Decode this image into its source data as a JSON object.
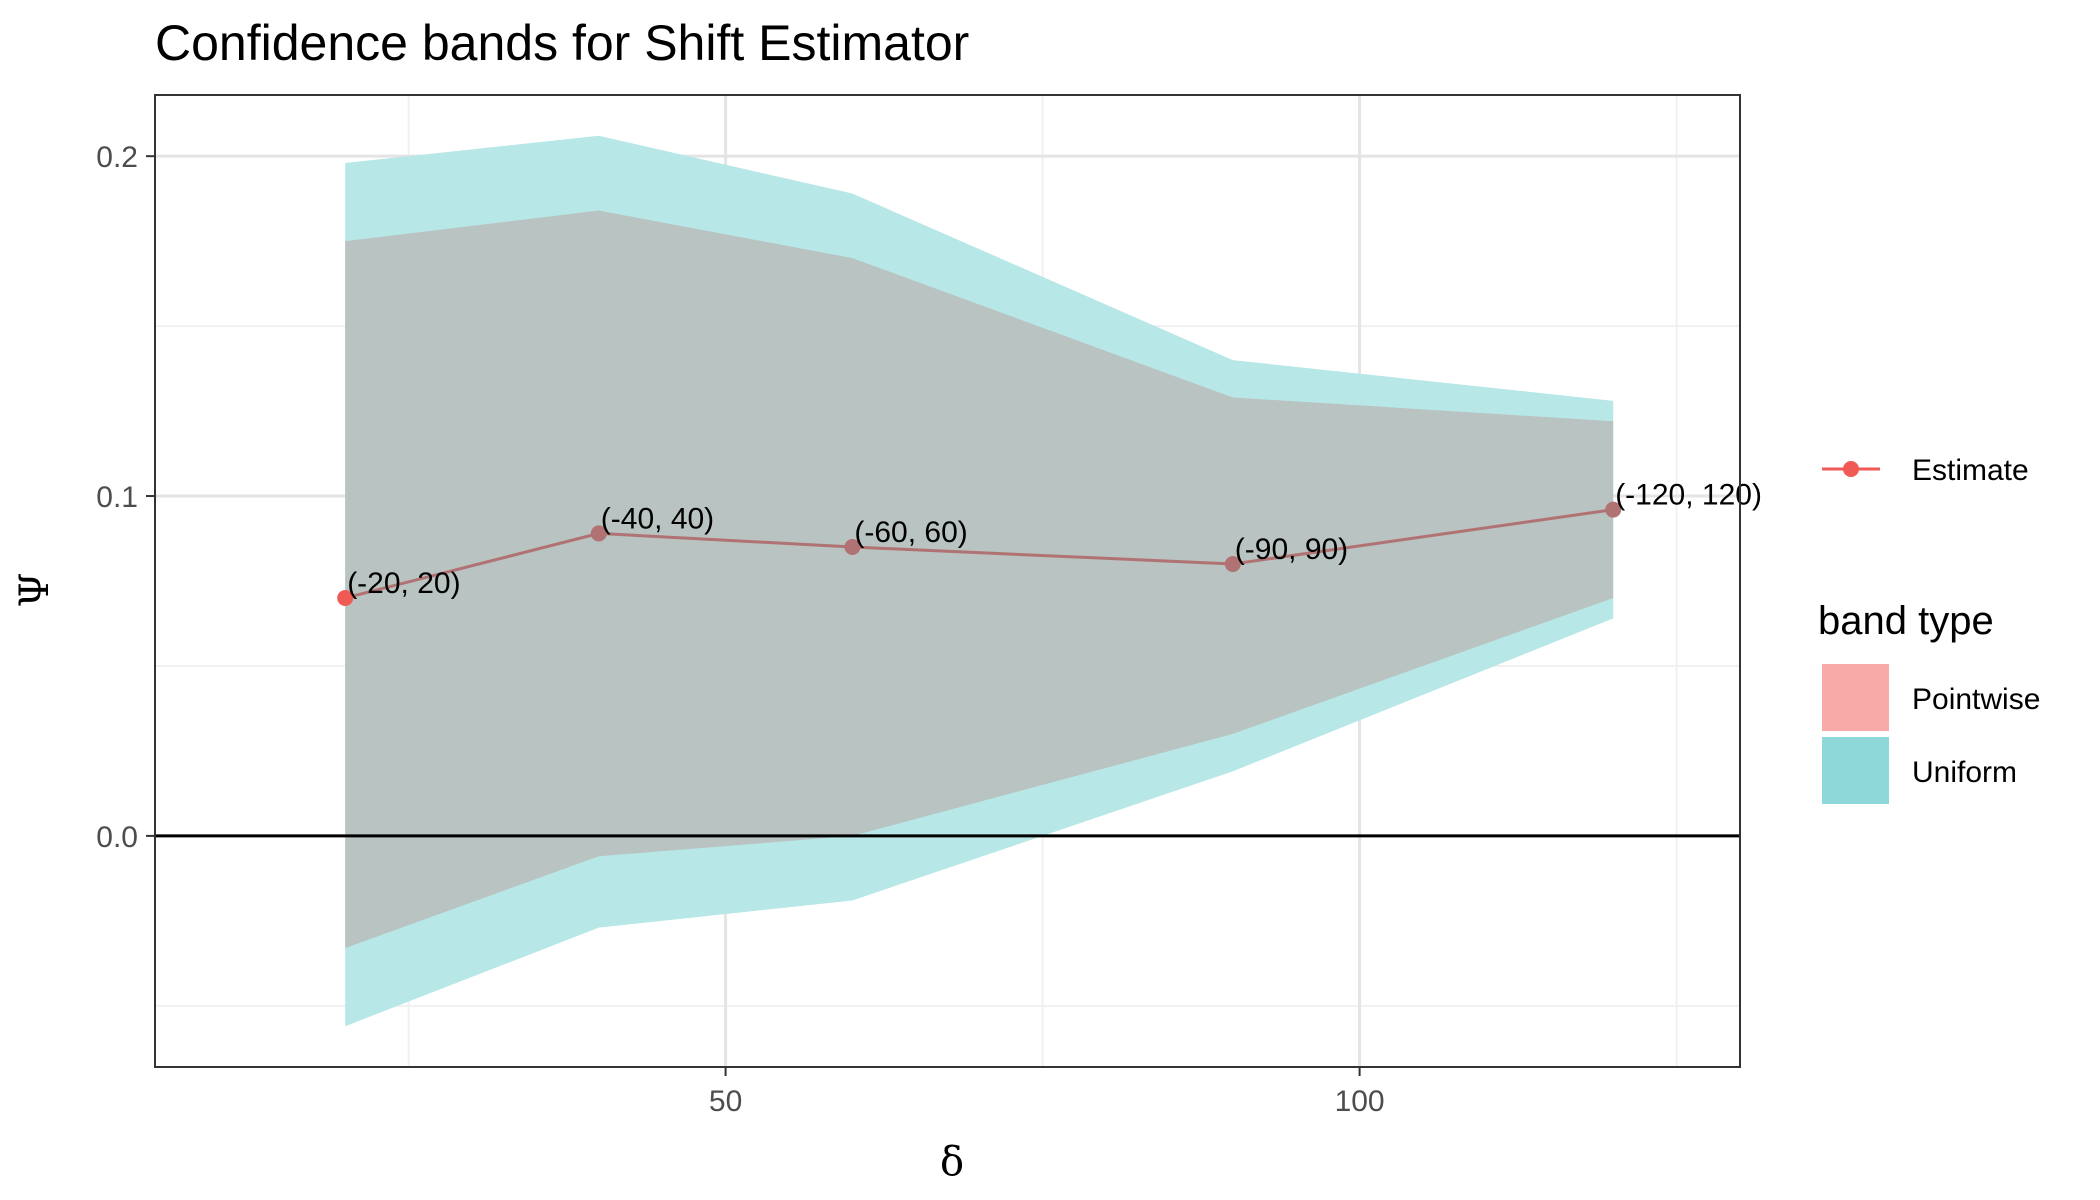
{
  "chart_data": {
    "type": "line",
    "title": "Confidence bands for Shift Estimator",
    "xlabel": "δ",
    "ylabel": "Ψ",
    "xlim": [
      5,
      130
    ],
    "ylim": [
      -0.068,
      0.218
    ],
    "x_ticks": [
      50,
      100
    ],
    "x_tick_labels": [
      "50",
      "100"
    ],
    "x_minor_ticks": [
      25,
      75,
      125
    ],
    "y_ticks": [
      0.0,
      0.1,
      0.2
    ],
    "y_tick_labels": [
      "0.0",
      "0.1",
      "0.2"
    ],
    "y_minor_ticks": [
      -0.05,
      0.05,
      0.15
    ],
    "hline": 0,
    "grid": true,
    "x": [
      20,
      40,
      60,
      90,
      120
    ],
    "series": [
      {
        "name": "Estimate",
        "values": [
          0.07,
          0.089,
          0.085,
          0.08,
          0.096
        ],
        "point_labels": [
          "(-20, 20)",
          "(-40, 40)",
          "(-60, 60)",
          "(-90, 90)",
          "(-120, 120)"
        ]
      }
    ],
    "bands": [
      {
        "name": "Uniform",
        "lower": [
          -0.056,
          -0.027,
          -0.019,
          0.019,
          0.064
        ],
        "upper": [
          0.198,
          0.206,
          0.189,
          0.14,
          0.128
        ]
      },
      {
        "name": "Pointwise",
        "lower": [
          -0.033,
          -0.006,
          0.0,
          0.03,
          0.07
        ],
        "upper": [
          0.175,
          0.184,
          0.17,
          0.129,
          0.122
        ]
      }
    ],
    "legend": {
      "position": "right",
      "line_entry": "Estimate",
      "band_title": "band type",
      "band_entries": [
        "Pointwise",
        "Uniform"
      ]
    },
    "colors": {
      "estimate": "#f05a55",
      "estimate_line": "#b07272",
      "pointwise": "#f8aaa8",
      "uniform": "#8fd8d9",
      "uniform_band": "#b8e7e7",
      "overlap_band": "#b9c3c1",
      "grid_major": "#e4e4e4",
      "grid_minor": "#f0f0f0",
      "panel_border": "#333333",
      "zero_line": "#000000"
    }
  }
}
